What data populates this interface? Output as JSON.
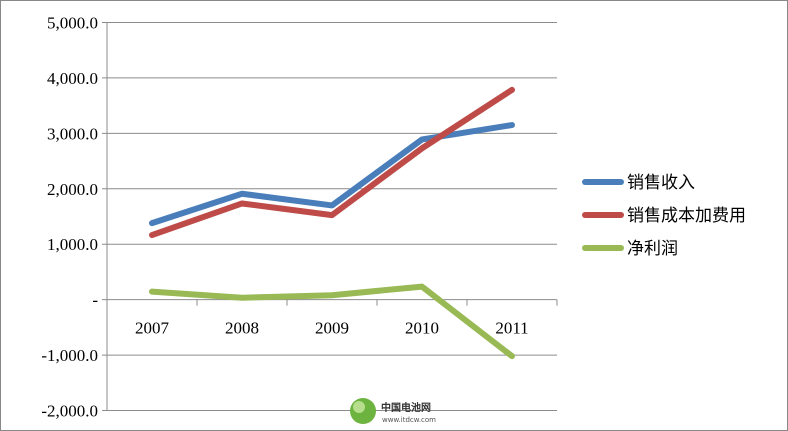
{
  "chart_data": {
    "type": "line",
    "title": "",
    "xlabel": "",
    "ylabel": "",
    "categories": [
      "2007",
      "2008",
      "2009",
      "2010",
      "2011"
    ],
    "ylim": [
      -2000,
      5000
    ],
    "yticks": [
      -2000,
      -1000,
      0,
      1000,
      2000,
      3000,
      4000,
      5000
    ],
    "ytick_labels": [
      "-2,000.0",
      "-1,000.0",
      "-",
      "1,000.0",
      "2,000.0",
      "3,000.0",
      "4,000.0",
      "5,000.0"
    ],
    "grid": true,
    "legend_position": "right",
    "series": [
      {
        "name": "销售收入",
        "color": "#4a7ebb",
        "values": [
          1380,
          1910,
          1700,
          2890,
          3150
        ]
      },
      {
        "name": "销售成本加费用",
        "color": "#be4b48",
        "values": [
          1165,
          1735,
          1525,
          2730,
          3785
        ]
      },
      {
        "name": "净利润",
        "color": "#98b954",
        "values": [
          145,
          35,
          80,
          235,
          -1020
        ]
      }
    ]
  },
  "watermark": {
    "name": "中国电池网",
    "url": "www.itdcw.com"
  }
}
